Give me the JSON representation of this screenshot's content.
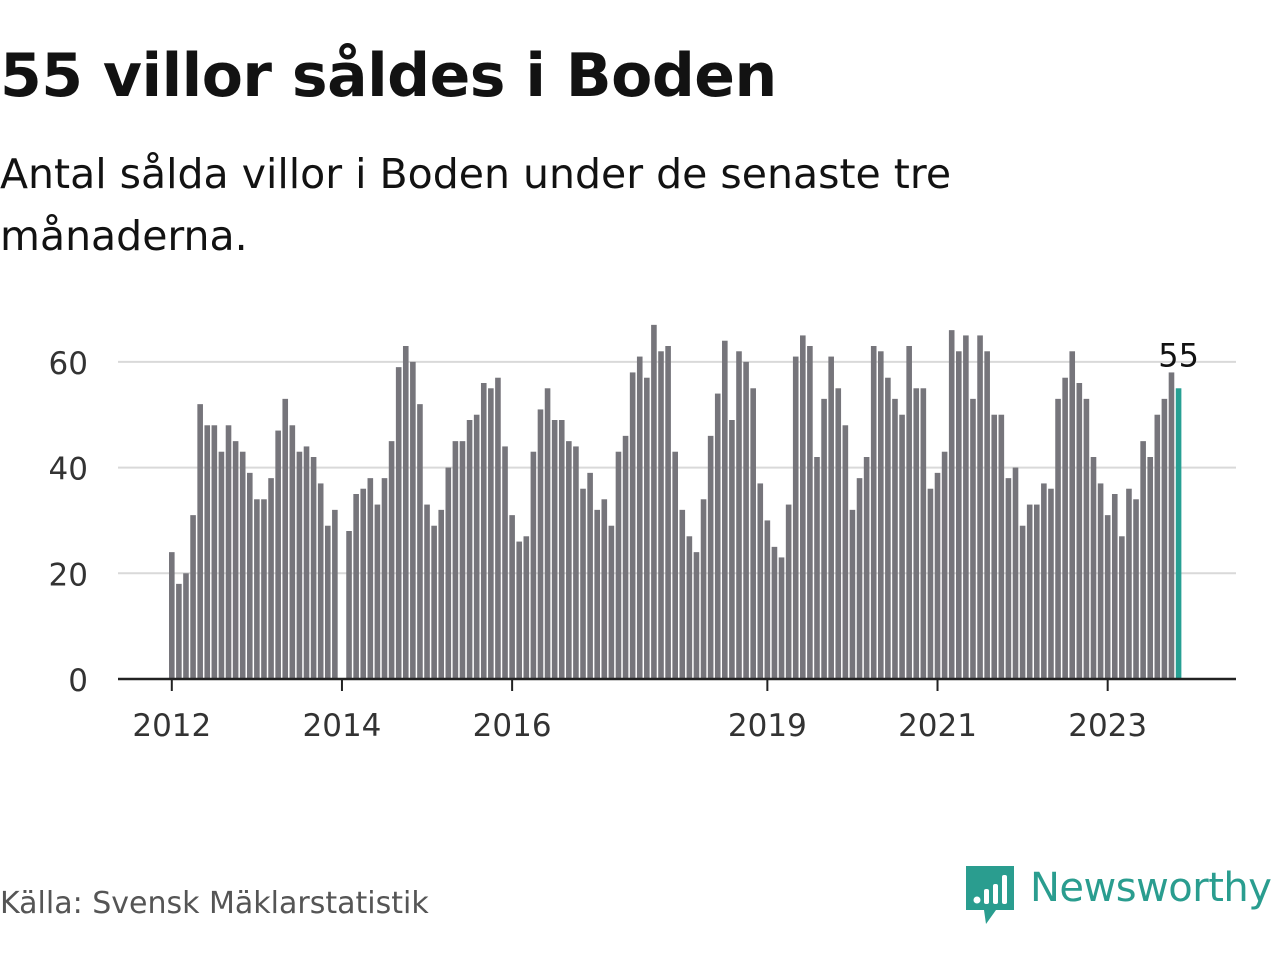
{
  "title": "55 villor såldes i Boden",
  "subtitle": "Antal sålda villor i Boden under de senaste tre månaderna.",
  "source": "Källa: Svensk Mäklarstatistik",
  "brand": "Newsworthy",
  "colors": {
    "bar": "#76757b",
    "highlight": "#27a093",
    "grid": "#d9d9d9",
    "axis": "#222222",
    "brand": "#2a9d8f"
  },
  "chart_data": {
    "type": "bar",
    "title": "55 villor såldes i Boden",
    "subtitle": "Antal sålda villor i Boden under de senaste tre månaderna.",
    "xlabel": "",
    "ylabel": "",
    "ylim": [
      0,
      70
    ],
    "yticks": [
      0,
      20,
      40,
      60
    ],
    "start": "2012-01",
    "xtick_labels": [
      {
        "label": "2012",
        "index": 0
      },
      {
        "label": "2014",
        "index": 24
      },
      {
        "label": "2016",
        "index": 48
      },
      {
        "label": "2019",
        "index": 84
      },
      {
        "label": "2021",
        "index": 108
      },
      {
        "label": "2023",
        "index": 132
      }
    ],
    "values": [
      24,
      18,
      20,
      31,
      52,
      48,
      48,
      43,
      48,
      45,
      43,
      39,
      34,
      34,
      38,
      47,
      53,
      48,
      43,
      44,
      42,
      37,
      29,
      32,
      null,
      28,
      35,
      36,
      38,
      33,
      38,
      45,
      59,
      63,
      60,
      52,
      33,
      29,
      32,
      40,
      45,
      45,
      49,
      50,
      56,
      55,
      57,
      44,
      31,
      26,
      27,
      43,
      51,
      55,
      49,
      49,
      45,
      44,
      36,
      39,
      32,
      34,
      29,
      43,
      46,
      58,
      61,
      57,
      67,
      62,
      63,
      43,
      32,
      27,
      24,
      34,
      46,
      54,
      64,
      49,
      62,
      60,
      55,
      37,
      30,
      25,
      23,
      33,
      61,
      65,
      63,
      42,
      53,
      61,
      55,
      48,
      32,
      38,
      42,
      63,
      62,
      57,
      53,
      50,
      63,
      55,
      55,
      36,
      39,
      43,
      66,
      62,
      65,
      53,
      65,
      62,
      50,
      50,
      38,
      40,
      29,
      33,
      33,
      37,
      36,
      53,
      57,
      62,
      56,
      53,
      42,
      37,
      31,
      35,
      27,
      36,
      34,
      45,
      42,
      50,
      53,
      58,
      55
    ],
    "highlight_index": 142,
    "highlight_label": "55"
  }
}
